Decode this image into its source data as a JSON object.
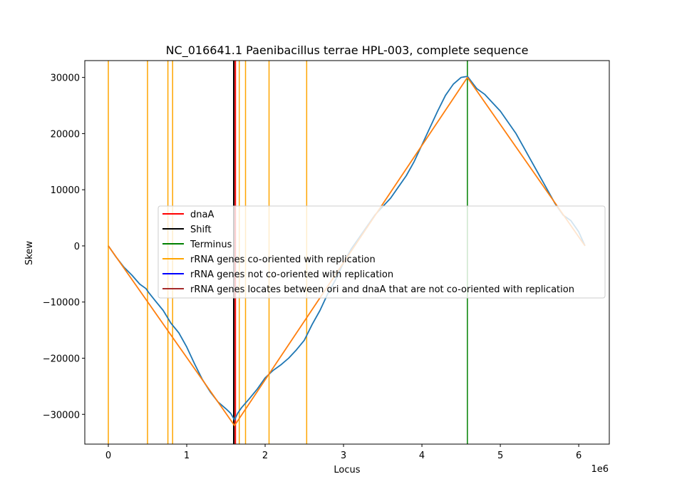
{
  "chart_data": {
    "type": "line",
    "title": "NC_016641.1 Paenibacillus terrae HPL-003, complete sequence",
    "xlabel": "Locus",
    "ylabel": "Skew",
    "x_multiplier_label": "1e6",
    "xlim": [
      -300000,
      6390000
    ],
    "ylim": [
      -35300,
      33000
    ],
    "x_ticks": [
      0,
      1000000,
      2000000,
      3000000,
      4000000,
      5000000,
      6000000
    ],
    "x_tick_labels": [
      "0",
      "1",
      "2",
      "3",
      "4",
      "5",
      "6"
    ],
    "y_ticks": [
      -30000,
      -20000,
      -10000,
      0,
      10000,
      20000,
      30000
    ],
    "y_tick_labels": [
      "−30000",
      "−20000",
      "−10000",
      "0",
      "10000",
      "20000",
      "30000"
    ],
    "grid": false,
    "legend_position": "center",
    "series": [
      {
        "name": "",
        "color": "#1f77b4",
        "points": [
          [
            0,
            0
          ],
          [
            100000,
            -2000
          ],
          [
            200000,
            -3800
          ],
          [
            300000,
            -5200
          ],
          [
            400000,
            -6800
          ],
          [
            480000,
            -7600
          ],
          [
            520000,
            -8400
          ],
          [
            600000,
            -9800
          ],
          [
            700000,
            -11500
          ],
          [
            800000,
            -13800
          ],
          [
            900000,
            -15500
          ],
          [
            1000000,
            -18000
          ],
          [
            1100000,
            -21000
          ],
          [
            1200000,
            -23800
          ],
          [
            1300000,
            -26000
          ],
          [
            1400000,
            -27800
          ],
          [
            1500000,
            -29000
          ],
          [
            1560000,
            -29800
          ],
          [
            1610000,
            -31000
          ],
          [
            1650000,
            -29800
          ],
          [
            1700000,
            -28800
          ],
          [
            1800000,
            -27200
          ],
          [
            1900000,
            -25500
          ],
          [
            2000000,
            -23500
          ],
          [
            2100000,
            -22200
          ],
          [
            2200000,
            -21200
          ],
          [
            2300000,
            -20000
          ],
          [
            2400000,
            -18500
          ],
          [
            2500000,
            -16800
          ],
          [
            2600000,
            -14000
          ],
          [
            2700000,
            -11500
          ],
          [
            2800000,
            -8500
          ],
          [
            2900000,
            -6000
          ],
          [
            3000000,
            -3000
          ],
          [
            3100000,
            -500
          ],
          [
            3200000,
            1500
          ],
          [
            3300000,
            3500
          ],
          [
            3400000,
            5500
          ],
          [
            3500000,
            7000
          ],
          [
            3600000,
            8500
          ],
          [
            3700000,
            10500
          ],
          [
            3800000,
            12500
          ],
          [
            3900000,
            15000
          ],
          [
            4000000,
            18000
          ],
          [
            4100000,
            21000
          ],
          [
            4200000,
            24000
          ],
          [
            4300000,
            26800
          ],
          [
            4400000,
            28800
          ],
          [
            4500000,
            30000
          ],
          [
            4580000,
            30200
          ],
          [
            4700000,
            28000
          ],
          [
            4800000,
            27000
          ],
          [
            4900000,
            25500
          ],
          [
            5000000,
            24000
          ],
          [
            5100000,
            22000
          ],
          [
            5200000,
            20000
          ],
          [
            5300000,
            17500
          ],
          [
            5400000,
            15000
          ],
          [
            5500000,
            12500
          ],
          [
            5600000,
            10000
          ],
          [
            5700000,
            7500
          ],
          [
            5800000,
            5500
          ],
          [
            5900000,
            4500
          ],
          [
            6000000,
            2500
          ],
          [
            6080000,
            0
          ]
        ]
      },
      {
        "name": "",
        "color": "#ff7f0e",
        "points": [
          [
            0,
            0
          ],
          [
            1610000,
            -32000
          ],
          [
            4580000,
            30000
          ],
          [
            6080000,
            0
          ]
        ]
      }
    ],
    "vertical_markers": [
      {
        "name": "rRNA genes co-oriented with replication",
        "color": "#ffa500",
        "x": [
          0,
          500000,
          760000,
          820000,
          1670000,
          1750000,
          2050000,
          2530000
        ]
      },
      {
        "name": "dnaA",
        "color": "#ff0000",
        "x": [
          1620000
        ]
      },
      {
        "name": "Shift",
        "color": "#000000",
        "x": [
          1600000
        ]
      },
      {
        "name": "Terminus",
        "color": "#008000",
        "x": [
          4580000
        ]
      }
    ],
    "legend": [
      {
        "label": "dnaA",
        "color": "#ff0000"
      },
      {
        "label": "Shift",
        "color": "#000000"
      },
      {
        "label": "Terminus",
        "color": "#008000"
      },
      {
        "label": "rRNA genes co-oriented with replication",
        "color": "#ffa500"
      },
      {
        "label": "rRNA genes not co-oriented with replication",
        "color": "#0000ff"
      },
      {
        "label": "rRNA genes locates between ori and dnaA that are not co-oriented with replication",
        "color": "#a52a2a"
      }
    ]
  }
}
